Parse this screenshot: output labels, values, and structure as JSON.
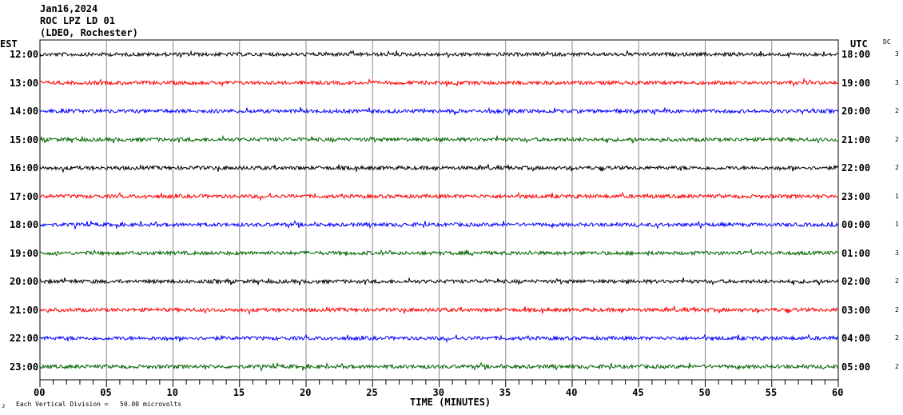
{
  "chart_data": {
    "type": "line",
    "title": [
      "Jan16,2024",
      "ROC LPZ LD 01",
      "(LDEO, Rochester)"
    ],
    "left_axis_label": "EST",
    "right_axis_label": "UTC",
    "dc_label": "DC",
    "xlabel": "TIME (MINUTES)",
    "xlim": [
      0,
      60
    ],
    "x_ticks": [
      "00",
      "05",
      "10",
      "15",
      "20",
      "25",
      "30",
      "35",
      "40",
      "45",
      "50",
      "55",
      "60"
    ],
    "scale_note": "Each Vertical Division =   50.00 microvolts",
    "corner_mark": "ᴊ",
    "rows": [
      {
        "est": "12:00",
        "utc": "18:00",
        "dc": "3",
        "color": "#000000"
      },
      {
        "est": "13:00",
        "utc": "19:00",
        "dc": "3",
        "color": "#ff0000"
      },
      {
        "est": "14:00",
        "utc": "20:00",
        "dc": "2",
        "color": "#0000ff"
      },
      {
        "est": "15:00",
        "utc": "21:00",
        "dc": "2",
        "color": "#006400"
      },
      {
        "est": "16:00",
        "utc": "22:00",
        "dc": "2",
        "color": "#000000"
      },
      {
        "est": "17:00",
        "utc": "23:00",
        "dc": "1",
        "color": "#ff0000"
      },
      {
        "est": "18:00",
        "utc": "00:00",
        "dc": "1",
        "color": "#0000ff"
      },
      {
        "est": "19:00",
        "utc": "01:00",
        "dc": "3",
        "color": "#006400"
      },
      {
        "est": "20:00",
        "utc": "02:00",
        "dc": "2",
        "color": "#000000"
      },
      {
        "est": "21:00",
        "utc": "03:00",
        "dc": "2",
        "color": "#ff0000"
      },
      {
        "est": "22:00",
        "utc": "04:00",
        "dc": "2",
        "color": "#0000ff"
      },
      {
        "est": "23:00",
        "utc": "05:00",
        "dc": "2",
        "color": "#006400"
      }
    ]
  }
}
